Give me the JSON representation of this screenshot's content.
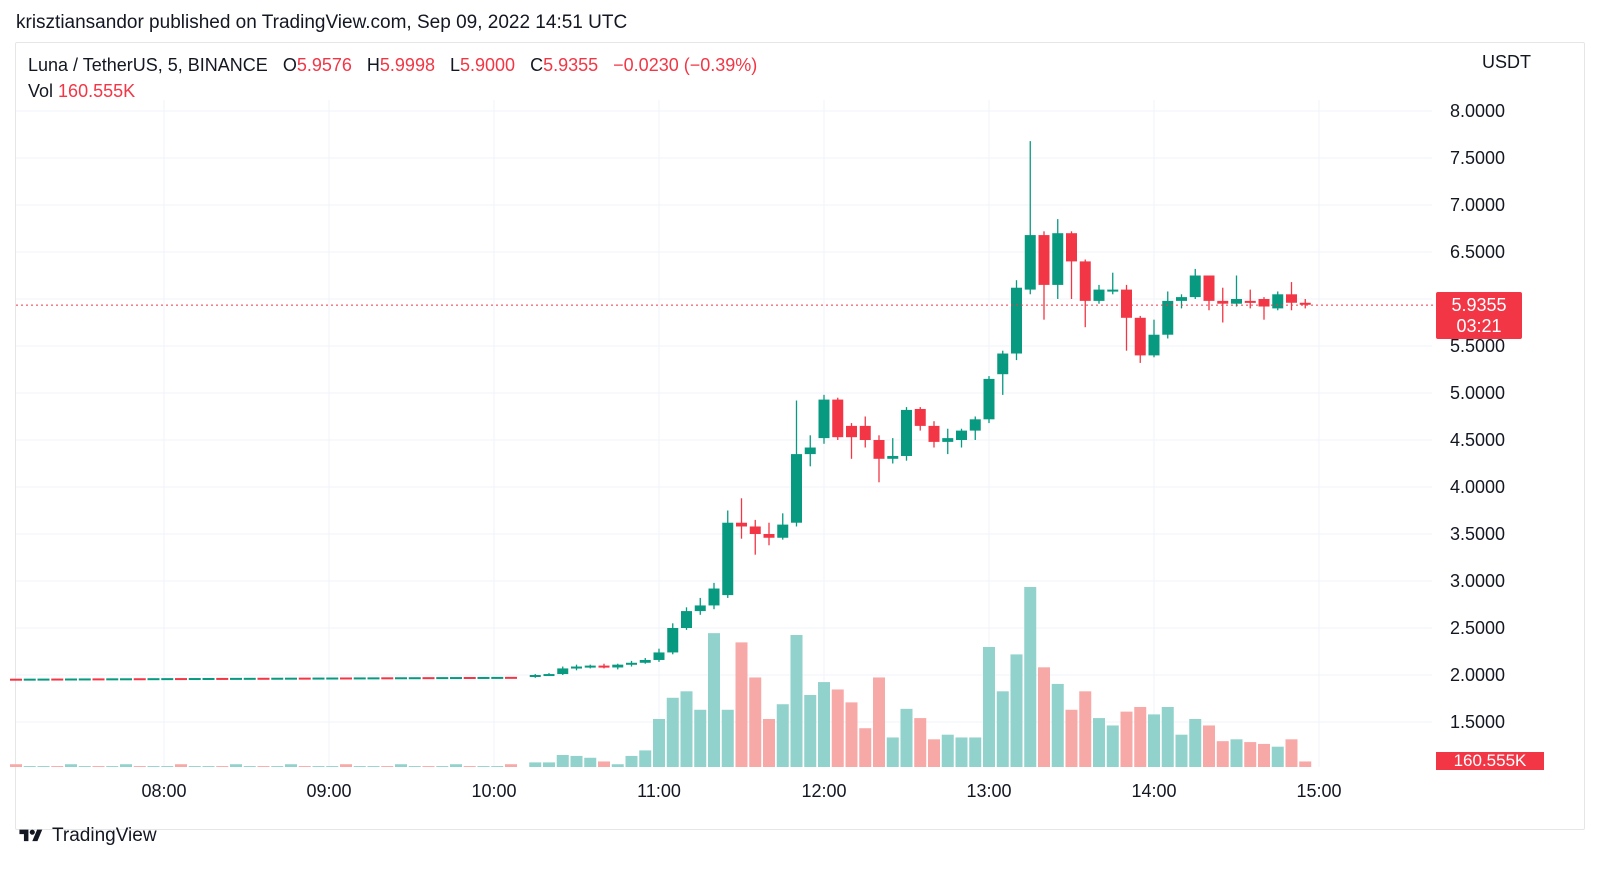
{
  "header": {
    "publisher_line": "krisztiansandor published on TradingView.com, Sep 09, 2022 14:51 UTC"
  },
  "legend": {
    "symbol": "Luna / TetherUS, 5, BINANCE",
    "o_label": "O",
    "o_value": "5.9576",
    "h_label": "H",
    "h_value": "5.9998",
    "l_label": "L",
    "l_value": "5.9000",
    "c_label": "C",
    "c_value": "5.9355",
    "change": "−0.0230 (−0.39%)",
    "vol_label": "Vol",
    "vol_value": "160.555K"
  },
  "price_axis": {
    "unit": "USDT",
    "current_price": "5.9355",
    "countdown": "03:21",
    "volume_tag": "160.555K"
  },
  "footer": {
    "brand": "TradingView"
  },
  "colors": {
    "up": "#089981",
    "down": "#f23645",
    "vol_up": "#92d2cc",
    "vol_down": "#f7a9a7",
    "grid": "#f0f3fa",
    "text": "#131722"
  },
  "chart_data": {
    "type": "candlestick",
    "title": "Luna / TetherUS, 5, BINANCE",
    "interval_minutes": 5,
    "x_ticks": [
      "08:00",
      "09:00",
      "10:00",
      "11:00",
      "12:00",
      "13:00",
      "14:00",
      "15:00"
    ],
    "y_ticks": [
      "1.5000",
      "2.0000",
      "2.5000",
      "3.0000",
      "3.5000",
      "4.0000",
      "4.5000",
      "5.0000",
      "5.5000",
      "6.0000",
      "6.5000",
      "7.0000",
      "7.5000",
      "8.0000"
    ],
    "ylim": [
      1.3,
      8.2
    ],
    "volume_max": 2.95,
    "last_price": 5.9355,
    "flat_segment": {
      "from": "07:00",
      "to": "10:10",
      "price_start": 1.95,
      "price_end": 1.97,
      "volume": 1.01
    },
    "candles": [
      {
        "t": "10:15",
        "o": 1.98,
        "h": 2.01,
        "l": 1.97,
        "c": 2.0,
        "v": 1.05
      },
      {
        "t": "10:20",
        "o": 2.0,
        "h": 2.02,
        "l": 1.99,
        "c": 2.01,
        "v": 1.05
      },
      {
        "t": "10:25",
        "o": 2.01,
        "h": 2.09,
        "l": 2.0,
        "c": 2.07,
        "v": 1.13
      },
      {
        "t": "10:30",
        "o": 2.07,
        "h": 2.11,
        "l": 2.05,
        "c": 2.09,
        "v": 1.12
      },
      {
        "t": "10:35",
        "o": 2.09,
        "h": 2.11,
        "l": 2.07,
        "c": 2.1,
        "v": 1.1
      },
      {
        "t": "10:40",
        "o": 2.1,
        "h": 2.12,
        "l": 2.07,
        "c": 2.08,
        "v": 1.06
      },
      {
        "t": "10:45",
        "o": 2.08,
        "h": 2.12,
        "l": 2.06,
        "c": 2.11,
        "v": 1.03
      },
      {
        "t": "10:50",
        "o": 2.11,
        "h": 2.15,
        "l": 2.09,
        "c": 2.13,
        "v": 1.12
      },
      {
        "t": "10:55",
        "o": 2.13,
        "h": 2.18,
        "l": 2.12,
        "c": 2.16,
        "v": 1.18
      },
      {
        "t": "11:00",
        "o": 2.16,
        "h": 2.28,
        "l": 2.14,
        "c": 2.24,
        "v": 1.52
      },
      {
        "t": "11:05",
        "o": 2.24,
        "h": 2.55,
        "l": 2.22,
        "c": 2.5,
        "v": 1.75
      },
      {
        "t": "11:10",
        "o": 2.5,
        "h": 2.72,
        "l": 2.48,
        "c": 2.68,
        "v": 1.82
      },
      {
        "t": "11:15",
        "o": 2.68,
        "h": 2.82,
        "l": 2.64,
        "c": 2.74,
        "v": 1.62
      },
      {
        "t": "11:20",
        "o": 2.74,
        "h": 2.98,
        "l": 2.7,
        "c": 2.92,
        "v": 2.45
      },
      {
        "t": "11:25",
        "o": 2.85,
        "h": 3.75,
        "l": 2.82,
        "c": 3.62,
        "v": 1.62
      },
      {
        "t": "11:30",
        "o": 3.62,
        "h": 3.88,
        "l": 3.45,
        "c": 3.58,
        "v": 2.35
      },
      {
        "t": "11:35",
        "o": 3.58,
        "h": 3.65,
        "l": 3.28,
        "c": 3.5,
        "v": 1.97
      },
      {
        "t": "11:40",
        "o": 3.5,
        "h": 3.62,
        "l": 3.38,
        "c": 3.46,
        "v": 1.52
      },
      {
        "t": "11:45",
        "o": 3.46,
        "h": 3.72,
        "l": 3.44,
        "c": 3.6,
        "v": 1.68
      },
      {
        "t": "11:50",
        "o": 3.62,
        "h": 4.92,
        "l": 3.58,
        "c": 4.35,
        "v": 2.43
      },
      {
        "t": "11:55",
        "o": 4.35,
        "h": 4.55,
        "l": 4.22,
        "c": 4.42,
        "v": 1.78
      },
      {
        "t": "12:00",
        "o": 4.52,
        "h": 4.98,
        "l": 4.46,
        "c": 4.93,
        "v": 1.92
      },
      {
        "t": "12:05",
        "o": 4.93,
        "h": 4.95,
        "l": 4.5,
        "c": 4.53,
        "v": 1.84
      },
      {
        "t": "12:10",
        "o": 4.65,
        "h": 4.68,
        "l": 4.3,
        "c": 4.53,
        "v": 1.7
      },
      {
        "t": "12:15",
        "o": 4.65,
        "h": 4.75,
        "l": 4.42,
        "c": 4.5,
        "v": 1.42
      },
      {
        "t": "12:20",
        "o": 4.5,
        "h": 4.55,
        "l": 4.05,
        "c": 4.3,
        "v": 1.97
      },
      {
        "t": "12:25",
        "o": 4.3,
        "h": 4.52,
        "l": 4.25,
        "c": 4.33,
        "v": 1.32
      },
      {
        "t": "12:30",
        "o": 4.33,
        "h": 4.85,
        "l": 4.28,
        "c": 4.82,
        "v": 1.63
      },
      {
        "t": "12:35",
        "o": 4.83,
        "h": 4.85,
        "l": 4.6,
        "c": 4.65,
        "v": 1.53
      },
      {
        "t": "12:40",
        "o": 4.65,
        "h": 4.7,
        "l": 4.42,
        "c": 4.48,
        "v": 1.3
      },
      {
        "t": "12:45",
        "o": 4.48,
        "h": 4.62,
        "l": 4.35,
        "c": 4.52,
        "v": 1.35
      },
      {
        "t": "12:50",
        "o": 4.5,
        "h": 4.62,
        "l": 4.42,
        "c": 4.6,
        "v": 1.32
      },
      {
        "t": "12:55",
        "o": 4.6,
        "h": 4.75,
        "l": 4.5,
        "c": 4.72,
        "v": 1.32
      },
      {
        "t": "13:00",
        "o": 4.72,
        "h": 5.18,
        "l": 4.68,
        "c": 5.15,
        "v": 2.3
      },
      {
        "t": "13:05",
        "o": 5.2,
        "h": 5.45,
        "l": 4.98,
        "c": 5.42,
        "v": 1.82
      },
      {
        "t": "13:10",
        "o": 5.42,
        "h": 6.2,
        "l": 5.35,
        "c": 6.12,
        "v": 2.22
      },
      {
        "t": "13:15",
        "o": 6.1,
        "h": 7.68,
        "l": 6.05,
        "c": 6.68,
        "v": 2.95
      },
      {
        "t": "13:20",
        "o": 6.68,
        "h": 6.72,
        "l": 5.78,
        "c": 6.15,
        "v": 2.08
      },
      {
        "t": "13:25",
        "o": 6.15,
        "h": 6.85,
        "l": 6.0,
        "c": 6.7,
        "v": 1.9
      },
      {
        "t": "13:30",
        "o": 6.7,
        "h": 6.72,
        "l": 6.0,
        "c": 6.4,
        "v": 1.62
      },
      {
        "t": "13:35",
        "o": 6.4,
        "h": 6.42,
        "l": 5.7,
        "c": 5.98,
        "v": 1.82
      },
      {
        "t": "13:40",
        "o": 5.98,
        "h": 6.15,
        "l": 5.95,
        "c": 6.1,
        "v": 1.53
      },
      {
        "t": "13:45",
        "o": 6.1,
        "h": 6.28,
        "l": 6.05,
        "c": 6.1,
        "v": 1.45
      },
      {
        "t": "13:50",
        "o": 6.1,
        "h": 6.15,
        "l": 5.45,
        "c": 5.8,
        "v": 1.6
      },
      {
        "t": "13:55",
        "o": 5.8,
        "h": 5.82,
        "l": 5.32,
        "c": 5.4,
        "v": 1.65
      },
      {
        "t": "14:00",
        "o": 5.4,
        "h": 5.78,
        "l": 5.38,
        "c": 5.62,
        "v": 1.57
      },
      {
        "t": "14:05",
        "o": 5.62,
        "h": 6.08,
        "l": 5.58,
        "c": 5.98,
        "v": 1.65
      },
      {
        "t": "14:10",
        "o": 5.98,
        "h": 6.05,
        "l": 5.9,
        "c": 6.02,
        "v": 1.35
      },
      {
        "t": "14:15",
        "o": 6.02,
        "h": 6.32,
        "l": 6.0,
        "c": 6.25,
        "v": 1.52
      },
      {
        "t": "14:20",
        "o": 6.25,
        "h": 6.25,
        "l": 5.88,
        "c": 5.98,
        "v": 1.45
      },
      {
        "t": "14:25",
        "o": 5.98,
        "h": 6.12,
        "l": 5.75,
        "c": 5.95,
        "v": 1.28
      },
      {
        "t": "14:30",
        "o": 5.95,
        "h": 6.25,
        "l": 5.92,
        "c": 6.0,
        "v": 1.3
      },
      {
        "t": "14:35",
        "o": 5.98,
        "h": 6.1,
        "l": 5.9,
        "c": 5.97,
        "v": 1.27
      },
      {
        "t": "14:40",
        "o": 6.0,
        "h": 6.02,
        "l": 5.78,
        "c": 5.92,
        "v": 1.25
      },
      {
        "t": "14:45",
        "o": 5.9,
        "h": 6.08,
        "l": 5.88,
        "c": 6.05,
        "v": 1.22
      },
      {
        "t": "14:50",
        "o": 6.05,
        "h": 6.18,
        "l": 5.88,
        "c": 5.96,
        "v": 1.3
      },
      {
        "t": "14:55",
        "o": 5.96,
        "h": 6.0,
        "l": 5.9,
        "c": 5.94,
        "v": 1.06
      }
    ]
  }
}
